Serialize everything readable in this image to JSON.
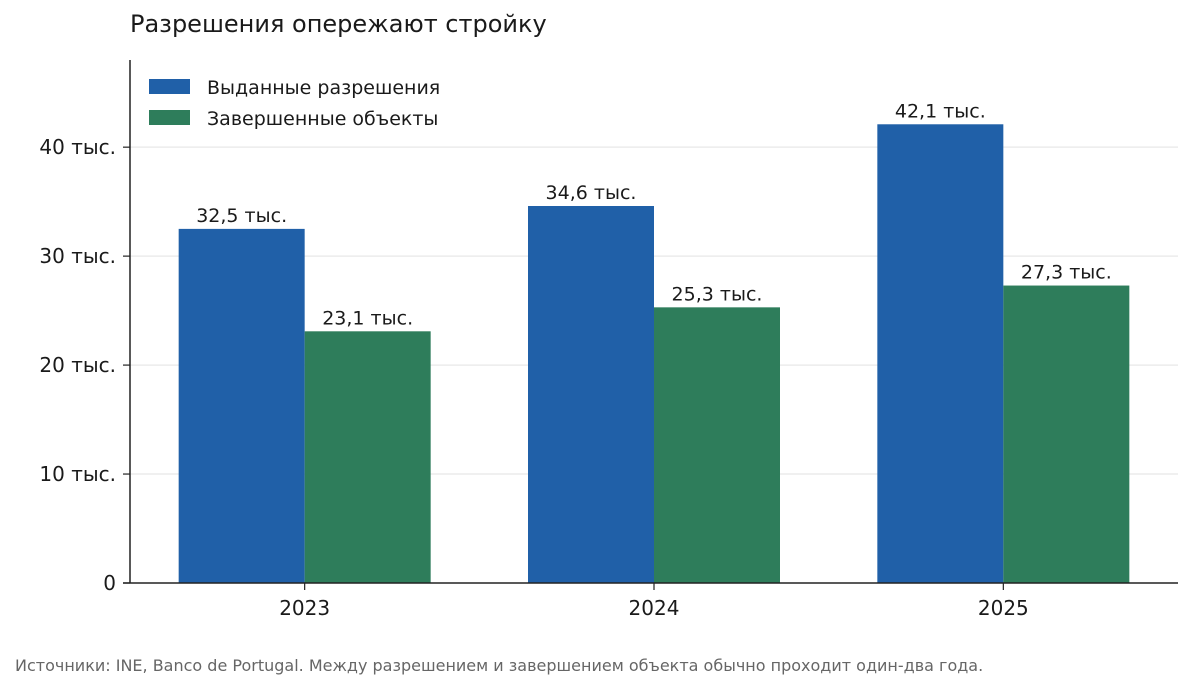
{
  "chart_data": {
    "type": "bar",
    "title": "Разрешения опережают стройку",
    "xlabel": "",
    "ylabel": "",
    "categories": [
      "2023",
      "2024",
      "2025"
    ],
    "series": [
      {
        "name": "Выданные разрешения",
        "values": [
          32500,
          34600,
          42100
        ],
        "labels": [
          "32,5 тыс.",
          "34,6 тыс.",
          "42,1 тыс."
        ],
        "color": "#2060a8"
      },
      {
        "name": "Завершенные объекты",
        "values": [
          23100,
          25300,
          27300
        ],
        "labels": [
          "23,1 тыс.",
          "25,3 тыс.",
          "27,3 тыс."
        ],
        "color": "#2e7d5b"
      }
    ],
    "ylim": [
      0,
      48000
    ],
    "yticks": [
      0,
      10000,
      20000,
      30000,
      40000
    ],
    "ytick_labels": [
      "0",
      "10 тыс.",
      "20 тыс.",
      "30 тыс.",
      "40 тыс."
    ],
    "grid": true,
    "legend_position": "top-left"
  },
  "footer": {
    "source": "Источники: INE, Banco de Portugal. Между разрешением и завершением объекта обычно проходит один-два года."
  }
}
